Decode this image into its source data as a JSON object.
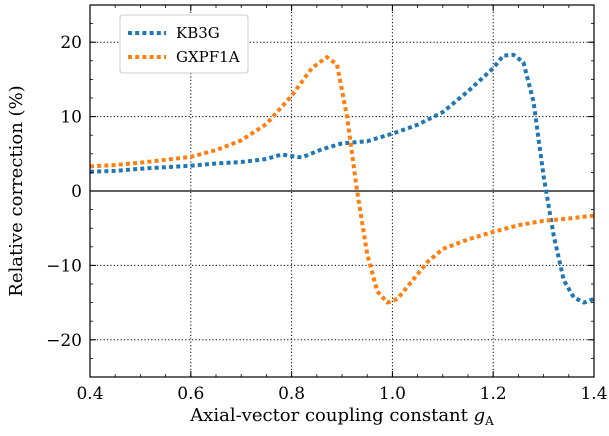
{
  "chart_data": {
    "type": "line",
    "xlabel": "Axial-vector coupling constant ",
    "xlabel_symbol": "g",
    "xlabel_subscript": "A",
    "ylabel": "Relative correction (%)",
    "xlim": [
      0.4,
      1.4
    ],
    "ylim": [
      -25,
      25
    ],
    "x_ticks": [
      0.4,
      0.6,
      0.8,
      1.0,
      1.2,
      1.4
    ],
    "x_tick_labels": [
      "0.4",
      "0.6",
      "0.8",
      "1.0",
      "1.2",
      "1.4"
    ],
    "y_ticks": [
      -20,
      -10,
      0,
      10,
      20
    ],
    "y_tick_labels": [
      "−20",
      "−10",
      "0",
      "10",
      "20"
    ],
    "grid": true,
    "grid_style": "dotted",
    "zero_line": true,
    "legend_position": "upper-left",
    "series": [
      {
        "name": "KB3G",
        "color": "#1f77b4",
        "style": "dotted",
        "points": [
          [
            0.4,
            2.6
          ],
          [
            0.45,
            2.7
          ],
          [
            0.5,
            3.0
          ],
          [
            0.55,
            3.2
          ],
          [
            0.6,
            3.4
          ],
          [
            0.65,
            3.7
          ],
          [
            0.7,
            3.9
          ],
          [
            0.75,
            4.3
          ],
          [
            0.78,
            4.9
          ],
          [
            0.82,
            4.5
          ],
          [
            0.86,
            5.6
          ],
          [
            0.9,
            6.4
          ],
          [
            0.95,
            6.7
          ],
          [
            1.0,
            7.7
          ],
          [
            1.05,
            8.9
          ],
          [
            1.1,
            10.6
          ],
          [
            1.15,
            13.4
          ],
          [
            1.2,
            16.5
          ],
          [
            1.22,
            18.2
          ],
          [
            1.24,
            18.3
          ],
          [
            1.26,
            17.3
          ],
          [
            1.28,
            12.0
          ],
          [
            1.3,
            2.0
          ],
          [
            1.32,
            -6.0
          ],
          [
            1.34,
            -12.0
          ],
          [
            1.36,
            -14.3
          ],
          [
            1.38,
            -15.0
          ],
          [
            1.4,
            -14.5
          ]
        ]
      },
      {
        "name": "GXPF1A",
        "color": "#ff7f0e",
        "style": "dotted",
        "points": [
          [
            0.4,
            3.3
          ],
          [
            0.45,
            3.5
          ],
          [
            0.5,
            3.8
          ],
          [
            0.55,
            4.2
          ],
          [
            0.6,
            4.6
          ],
          [
            0.65,
            5.5
          ],
          [
            0.7,
            6.8
          ],
          [
            0.75,
            9.0
          ],
          [
            0.8,
            12.8
          ],
          [
            0.84,
            16.5
          ],
          [
            0.87,
            18.0
          ],
          [
            0.89,
            17.0
          ],
          [
            0.91,
            10.0
          ],
          [
            0.93,
            0.0
          ],
          [
            0.95,
            -8.5
          ],
          [
            0.97,
            -13.5
          ],
          [
            0.99,
            -15.0
          ],
          [
            1.01,
            -14.5
          ],
          [
            1.04,
            -12.0
          ],
          [
            1.07,
            -9.5
          ],
          [
            1.1,
            -7.8
          ],
          [
            1.15,
            -6.5
          ],
          [
            1.2,
            -5.5
          ],
          [
            1.25,
            -4.6
          ],
          [
            1.3,
            -4.0
          ],
          [
            1.35,
            -3.7
          ],
          [
            1.4,
            -3.3
          ]
        ]
      }
    ]
  }
}
